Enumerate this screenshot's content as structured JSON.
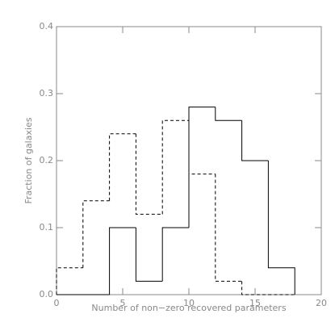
{
  "chart_data": {
    "type": "histogram",
    "xlabel": "Number of non−zero recovered parameters",
    "ylabel": "Fraction of galaxies",
    "bins": [
      0,
      2,
      4,
      6,
      8,
      10,
      12,
      14,
      16,
      18
    ],
    "series": [
      {
        "color": "#000000",
        "linestyle": "solid",
        "values": [
          0,
          0,
          0.1,
          0.02,
          0.1,
          0.28,
          0.26,
          0.2,
          0.04
        ]
      },
      {
        "color": "#000000",
        "linestyle": "dashed",
        "values": [
          0.04,
          0.14,
          0.24,
          0.12,
          0.26,
          0.18,
          0.02,
          0,
          0
        ]
      }
    ],
    "xlim": [
      0,
      20
    ],
    "xticks": [
      0,
      5,
      10,
      15,
      20
    ],
    "ylim": [
      0,
      0.4
    ],
    "yticks": [
      {
        "value": 0,
        "label": "0.0"
      },
      0.1,
      0.2,
      0.3,
      0.4
    ]
  }
}
